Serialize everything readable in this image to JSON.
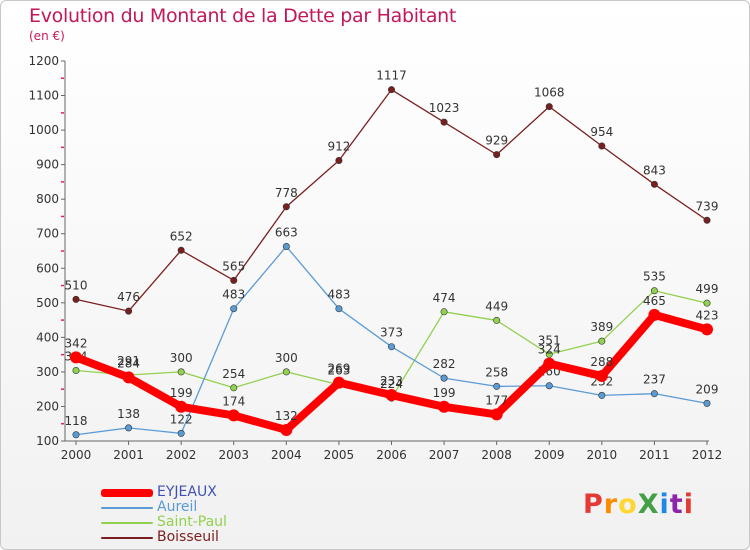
{
  "header": {
    "title": "Evolution du Montant de la Dette par Habitant",
    "subtitle": "(en €)"
  },
  "logo": {
    "text": "ProXiti",
    "colors": [
      "#e53935",
      "#fb8c00",
      "#fdd835",
      "#43a047",
      "#1e88e5",
      "#8e24aa"
    ]
  },
  "chart_data": {
    "type": "line",
    "title": "Evolution du Montant de la Dette par Habitant",
    "unit": "(en €)",
    "x": [
      "2000",
      "2001",
      "2002",
      "2003",
      "2004",
      "2005",
      "2006",
      "2007",
      "2008",
      "2009",
      "2010",
      "2011",
      "2012"
    ],
    "ylim": [
      100,
      1200
    ],
    "yticks": [
      100,
      200,
      300,
      400,
      500,
      600,
      700,
      800,
      900,
      1000,
      1100,
      1200
    ],
    "grid": false,
    "legend_position": "bottom-left",
    "series": [
      {
        "name": "EYJEAUX",
        "color": "#ff0000",
        "values": [
          342,
          284,
          199,
          174,
          132,
          269,
          233,
          199,
          177,
          324,
          288,
          465,
          423
        ]
      },
      {
        "name": "Aureil",
        "color": "#5b9bd5",
        "values": [
          118,
          138,
          122,
          483,
          663,
          483,
          373,
          282,
          258,
          260,
          232,
          237,
          209
        ]
      },
      {
        "name": "Saint-Paul",
        "color": "#92d050",
        "values": [
          304,
          291,
          300,
          254,
          300,
          263,
          224,
          474,
          449,
          351,
          389,
          535,
          499
        ]
      },
      {
        "name": "Boisseuil",
        "color": "#7a1f1f",
        "values": [
          510,
          476,
          652,
          565,
          778,
          912,
          1117,
          1023,
          929,
          1068,
          954,
          843,
          739
        ]
      }
    ]
  }
}
